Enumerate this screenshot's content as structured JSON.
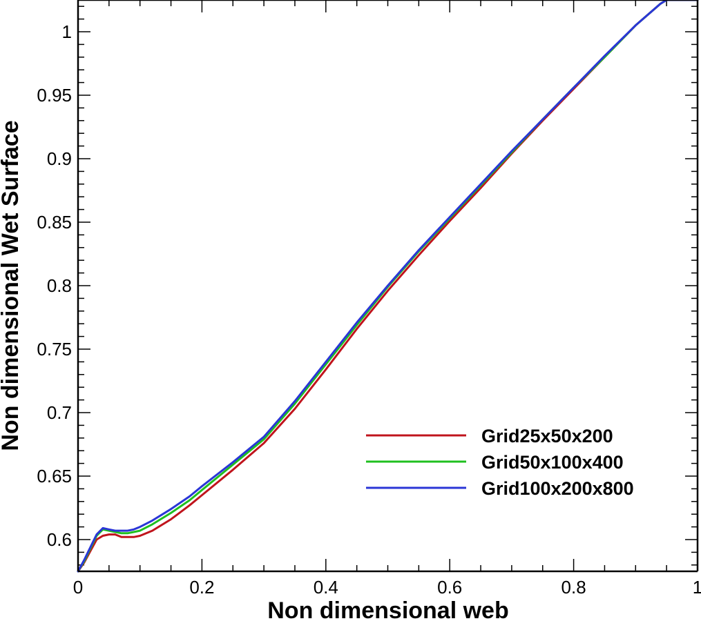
{
  "chart_data": {
    "type": "line",
    "title": "",
    "xlabel": "Non dimensional web",
    "ylabel": "Non dimensional Wet Surface",
    "xlim": [
      0,
      1
    ],
    "ylim": [
      0.575,
      1.025
    ],
    "grid": false,
    "legend_position": "bottom-right",
    "x_ticks": [
      0,
      0.2,
      0.4,
      0.6,
      0.8,
      1
    ],
    "x_tick_labels": [
      "0",
      "0.2",
      "0.4",
      "0.6",
      "0.8",
      "1"
    ],
    "y_ticks": [
      0.6,
      0.65,
      0.7,
      0.75,
      0.8,
      0.85,
      0.9,
      0.95,
      1
    ],
    "y_tick_labels": [
      "0.6",
      "0.65",
      "0.7",
      "0.75",
      "0.8",
      "0.85",
      "0.9",
      "0.95",
      "1"
    ],
    "series": [
      {
        "name": "Grid25x50x200",
        "color": "#c0141c",
        "x": [
          0.0,
          0.01,
          0.02,
          0.03,
          0.04,
          0.05,
          0.06,
          0.07,
          0.08,
          0.09,
          0.1,
          0.12,
          0.15,
          0.18,
          0.2,
          0.25,
          0.3,
          0.35,
          0.4,
          0.45,
          0.5,
          0.55,
          0.6,
          0.65,
          0.7,
          0.75,
          0.8,
          0.85,
          0.9,
          0.94,
          0.95,
          1.0
        ],
        "y": [
          0.575,
          0.582,
          0.591,
          0.6,
          0.603,
          0.604,
          0.604,
          0.602,
          0.602,
          0.602,
          0.603,
          0.607,
          0.616,
          0.627,
          0.635,
          0.655,
          0.676,
          0.703,
          0.734,
          0.766,
          0.796,
          0.824,
          0.851,
          0.877,
          0.904,
          0.93,
          0.955,
          0.98,
          1.005,
          1.022,
          1.025,
          1.025
        ]
      },
      {
        "name": "Grid50x100x400",
        "color": "#1fc01f",
        "x": [
          0.0,
          0.01,
          0.02,
          0.03,
          0.04,
          0.05,
          0.06,
          0.07,
          0.08,
          0.09,
          0.1,
          0.12,
          0.15,
          0.18,
          0.2,
          0.25,
          0.3,
          0.35,
          0.4,
          0.45,
          0.5,
          0.55,
          0.6,
          0.65,
          0.7,
          0.75,
          0.8,
          0.85,
          0.9,
          0.94,
          0.95,
          1.0
        ],
        "y": [
          0.575,
          0.583,
          0.593,
          0.603,
          0.608,
          0.607,
          0.606,
          0.605,
          0.605,
          0.606,
          0.607,
          0.612,
          0.621,
          0.631,
          0.639,
          0.659,
          0.679,
          0.707,
          0.738,
          0.769,
          0.799,
          0.827,
          0.853,
          0.879,
          0.905,
          0.931,
          0.956,
          0.98,
          1.005,
          1.022,
          1.025,
          1.025
        ]
      },
      {
        "name": "Grid100x200x800",
        "color": "#2a36d6",
        "x": [
          0.0,
          0.01,
          0.02,
          0.03,
          0.04,
          0.05,
          0.06,
          0.07,
          0.08,
          0.09,
          0.1,
          0.12,
          0.15,
          0.18,
          0.2,
          0.25,
          0.3,
          0.35,
          0.4,
          0.45,
          0.5,
          0.55,
          0.6,
          0.65,
          0.7,
          0.75,
          0.8,
          0.85,
          0.9,
          0.94,
          0.95,
          1.0
        ],
        "y": [
          0.575,
          0.584,
          0.594,
          0.604,
          0.609,
          0.608,
          0.607,
          0.607,
          0.607,
          0.608,
          0.61,
          0.615,
          0.624,
          0.634,
          0.642,
          0.661,
          0.681,
          0.709,
          0.74,
          0.771,
          0.8,
          0.828,
          0.854,
          0.88,
          0.906,
          0.931,
          0.956,
          0.981,
          1.005,
          1.022,
          1.025,
          1.025
        ]
      }
    ]
  }
}
